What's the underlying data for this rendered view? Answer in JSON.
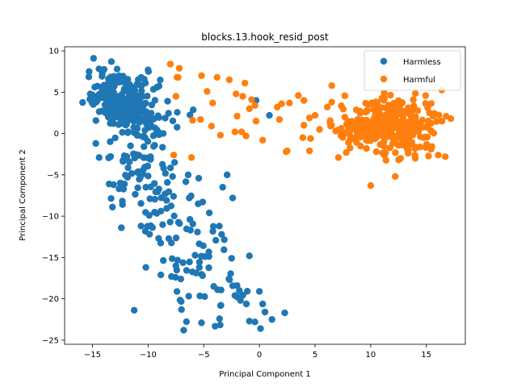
{
  "chart_data": {
    "type": "scatter",
    "title": "blocks.13.hook_resid_post",
    "xlabel": "Principal Component 1",
    "ylabel": "Principal Component 2",
    "xlim": [
      -17.5,
      18.5
    ],
    "ylim": [
      -25.5,
      10.5
    ],
    "xticks": [
      -15,
      -10,
      -5,
      0,
      5,
      10,
      15
    ],
    "yticks": [
      10,
      5,
      0,
      -5,
      -10,
      -15,
      -20,
      -25
    ],
    "grid": false,
    "legend_position": "top-right",
    "series": [
      {
        "name": "Harmless",
        "color": "#1f77b4",
        "clusters": [
          {
            "cx": -12.5,
            "cy": 4.5,
            "sx": 1.6,
            "sy": 1.6,
            "n": 180
          },
          {
            "cx": -11.0,
            "cy": 1.5,
            "sx": 1.3,
            "sy": 1.5,
            "n": 90
          },
          {
            "cx": -10.5,
            "cy": -3.5,
            "sx": 1.6,
            "sy": 2.0,
            "n": 50
          },
          {
            "cx": -9.0,
            "cy": -9.5,
            "sx": 2.0,
            "sy": 2.2,
            "n": 45
          },
          {
            "cx": -6.0,
            "cy": -15.5,
            "sx": 2.2,
            "sy": 2.5,
            "n": 35
          },
          {
            "cx": -3.5,
            "cy": -20.5,
            "sx": 2.2,
            "sy": 1.8,
            "n": 25
          }
        ],
        "points": [
          [
            -15.2,
            4.8
          ],
          [
            -15.3,
            7.5
          ],
          [
            -14.9,
            9.1
          ],
          [
            -13.3,
            8.7
          ],
          [
            -10.0,
            7.7
          ],
          [
            -9.2,
            5.6
          ],
          [
            -14.7,
            -1.2
          ],
          [
            -14.4,
            -2.9
          ],
          [
            -13.5,
            -6.1
          ],
          [
            -12.5,
            -6.0
          ],
          [
            -10.2,
            -6.5
          ],
          [
            -8.6,
            -4.2
          ],
          [
            -7.8,
            -5.2
          ],
          [
            -6.4,
            -5.0
          ],
          [
            -6.3,
            -7.8
          ],
          [
            -5.5,
            -8.5
          ],
          [
            -4.5,
            -9.6
          ],
          [
            -3.3,
            -6.5
          ],
          [
            -2.9,
            -5.0
          ],
          [
            -2.4,
            -7.8
          ],
          [
            -3.6,
            -11.2
          ],
          [
            -3.4,
            -12.2
          ],
          [
            -2.5,
            -15.1
          ],
          [
            -0.9,
            -14.8
          ],
          [
            0.0,
            -19.1
          ],
          [
            0.5,
            -21.6
          ],
          [
            -1.8,
            -19.0
          ],
          [
            -1.7,
            -20.2
          ],
          [
            -0.9,
            -22.7
          ],
          [
            -0.4,
            -22.8
          ],
          [
            0.1,
            -23.6
          ],
          [
            -6.8,
            -23.8
          ],
          [
            -5.2,
            -22.9
          ],
          [
            -7.0,
            -21.3
          ],
          [
            -4.1,
            -18.5
          ],
          [
            -7.5,
            -16.0
          ],
          [
            -10.2,
            -16.2
          ],
          [
            -12.4,
            -11.4
          ],
          [
            -13.2,
            -8.9
          ],
          [
            -7.9,
            -17.3
          ],
          [
            -0.3,
            4.0
          ],
          [
            0.9,
            2.2
          ]
        ]
      },
      {
        "name": "Harmful",
        "color": "#ff7f0e",
        "clusters": [
          {
            "cx": 12.0,
            "cy": 1.0,
            "sx": 1.9,
            "sy": 1.6,
            "n": 320
          },
          {
            "cx": 8.0,
            "cy": 0.8,
            "sx": 1.5,
            "sy": 1.5,
            "n": 30
          }
        ],
        "points": [
          [
            -8.0,
            8.4
          ],
          [
            -7.2,
            7.9
          ],
          [
            -7.3,
            6.8
          ],
          [
            -7.5,
            4.5
          ],
          [
            -7.7,
            -2.6
          ],
          [
            -6.1,
            -2.9
          ],
          [
            -6.0,
            1.6
          ],
          [
            -5.3,
            1.7
          ],
          [
            -4.3,
            0.9
          ],
          [
            -3.5,
            -0.2
          ],
          [
            -4.2,
            3.7
          ],
          [
            -4.7,
            5.1
          ],
          [
            -3.8,
            6.8
          ],
          [
            -2.7,
            6.5
          ],
          [
            -1.3,
            6.1
          ],
          [
            -2.1,
            4.8
          ],
          [
            -1.5,
            4.5
          ],
          [
            -2.0,
            2.1
          ],
          [
            -2.2,
            0.2
          ],
          [
            -1.6,
            0.2
          ],
          [
            -1.2,
            -0.3
          ],
          [
            -0.9,
            3.0
          ],
          [
            -0.7,
            4.1
          ],
          [
            -0.4,
            3.4
          ],
          [
            -0.3,
            1.5
          ],
          [
            0.3,
            -0.8
          ],
          [
            -5.2,
            7.0
          ],
          [
            -7.4,
            6.8
          ],
          [
            1.6,
            3.2
          ],
          [
            2.0,
            3.6
          ],
          [
            1.8,
            1.7
          ],
          [
            2.7,
            3.7
          ],
          [
            2.5,
            -2.1
          ],
          [
            2.4,
            -2.2
          ],
          [
            4.0,
            4.0
          ],
          [
            4.0,
            1.0
          ],
          [
            4.6,
            -0.6
          ],
          [
            4.5,
            -2.1
          ],
          [
            4.5,
            1.9
          ],
          [
            5.0,
            2.2
          ],
          [
            6.5,
            5.8
          ],
          [
            6.1,
            3.2
          ],
          [
            6.5,
            3.8
          ],
          [
            7.1,
            -2.9
          ],
          [
            7.8,
            -2.3
          ],
          [
            8.0,
            -1.1
          ],
          [
            8.5,
            -0.6
          ],
          [
            9.0,
            1.6
          ],
          [
            10.0,
            -6.3
          ],
          [
            10.5,
            -2.2
          ],
          [
            12.2,
            -5.2
          ],
          [
            14.0,
            -3.0
          ],
          [
            16.4,
            1.5
          ],
          [
            17.2,
            1.8
          ],
          [
            16.7,
            -2.8
          ],
          [
            3.9,
            -0.5
          ],
          [
            3.5,
            4.6
          ],
          [
            5.4,
            0.5
          ]
        ]
      }
    ]
  }
}
